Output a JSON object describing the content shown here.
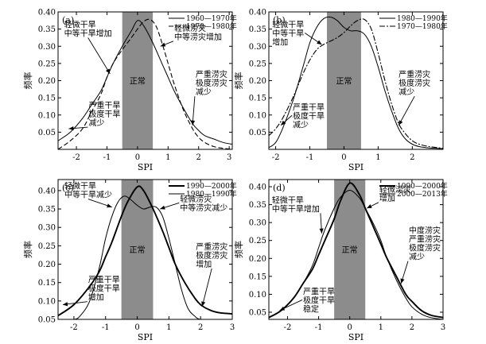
{
  "chart_data": [
    {
      "panel_label": "(a)",
      "type": "line",
      "xlabel": "SPI",
      "ylabel": "频率",
      "xlim": [
        -2.6,
        3.1
      ],
      "ylim": [
        0.0,
        0.4
      ],
      "xticks": [
        -2,
        -1,
        0,
        1,
        2,
        3
      ],
      "yticks": [
        0.05,
        0.1,
        0.15,
        0.2,
        0.25,
        0.3,
        0.35,
        0.4
      ],
      "shaded_region": {
        "x": [
          -0.5,
          0.5
        ],
        "label": "正常"
      },
      "legend": {
        "position": "top-right"
      },
      "series": [
        {
          "name": "1960—1970年",
          "style": "solid",
          "x": [
            -2.6,
            -2.2,
            -1.8,
            -1.5,
            -1.2,
            -1.0,
            -0.8,
            -0.5,
            -0.2,
            0.0,
            0.2,
            0.5,
            0.8,
            1.0,
            1.2,
            1.5,
            1.8,
            2.0,
            2.2,
            2.5,
            2.8,
            3.1
          ],
          "y": [
            0.025,
            0.05,
            0.09,
            0.13,
            0.17,
            0.21,
            0.25,
            0.3,
            0.345,
            0.375,
            0.36,
            0.31,
            0.25,
            0.21,
            0.17,
            0.12,
            0.075,
            0.055,
            0.04,
            0.03,
            0.02,
            0.015
          ]
        },
        {
          "name": "1970—1980年",
          "style": "dashed",
          "x": [
            -2.6,
            -2.2,
            -1.8,
            -1.5,
            -1.2,
            -1.0,
            -0.8,
            -0.5,
            -0.2,
            0.0,
            0.2,
            0.4,
            0.6,
            0.8,
            1.0,
            1.2,
            1.5,
            1.8,
            2.0,
            2.2,
            2.5,
            2.8,
            3.1
          ],
          "y": [
            0.0,
            0.025,
            0.06,
            0.11,
            0.16,
            0.21,
            0.25,
            0.29,
            0.325,
            0.35,
            0.372,
            0.378,
            0.36,
            0.31,
            0.25,
            0.19,
            0.115,
            0.06,
            0.035,
            0.02,
            0.008,
            0.003,
            0.0
          ]
        }
      ],
      "annotations": [
        {
          "lines": [
            "轻微干旱",
            "中等干旱增加"
          ],
          "at": [
            -2.4,
            0.355
          ],
          "target": [
            -0.9,
            0.22
          ]
        },
        {
          "lines": [
            "轻微涝灾",
            "中等涝灾增加"
          ],
          "at": [
            1.2,
            0.345
          ],
          "target": [
            0.75,
            0.3
          ]
        },
        {
          "lines": [
            "严重干旱",
            "极度干旱",
            "减少"
          ],
          "at": [
            -1.6,
            0.12
          ],
          "target": [
            -2.25,
            0.06
          ]
        },
        {
          "lines": [
            "严重涝灾",
            "极度涝灾",
            "减少"
          ],
          "at": [
            1.9,
            0.21
          ],
          "target": [
            1.8,
            0.07
          ]
        }
      ]
    },
    {
      "panel_label": "(b)",
      "type": "line",
      "xlabel": "SPI",
      "ylabel": "频率",
      "xlim": [
        -2.2,
        2.9
      ],
      "ylim": [
        0.0,
        0.4
      ],
      "xticks": [
        -2,
        -1,
        0,
        1,
        2
      ],
      "yticks": [
        0.05,
        0.1,
        0.15,
        0.2,
        0.25,
        0.3,
        0.35,
        0.4
      ],
      "shaded_region": {
        "x": [
          -0.5,
          0.5
        ],
        "label": "正常"
      },
      "legend": {
        "position": "top-right"
      },
      "series": [
        {
          "name": "1980—1990年",
          "style": "solid",
          "x": [
            -2.2,
            -2.0,
            -1.8,
            -1.5,
            -1.2,
            -1.0,
            -0.8,
            -0.6,
            -0.4,
            -0.2,
            0.0,
            0.2,
            0.4,
            0.6,
            0.8,
            1.0,
            1.2,
            1.4,
            1.6,
            1.8,
            2.0,
            2.2,
            2.5,
            2.9
          ],
          "y": [
            0.005,
            0.02,
            0.06,
            0.14,
            0.24,
            0.31,
            0.355,
            0.38,
            0.385,
            0.375,
            0.355,
            0.345,
            0.345,
            0.335,
            0.3,
            0.24,
            0.17,
            0.11,
            0.06,
            0.03,
            0.015,
            0.008,
            0.004,
            0.002
          ]
        },
        {
          "name": "1970—1980年",
          "style": "dashdot",
          "x": [
            -2.2,
            -2.0,
            -1.8,
            -1.5,
            -1.2,
            -1.0,
            -0.8,
            -0.6,
            -0.4,
            -0.2,
            0.0,
            0.2,
            0.4,
            0.6,
            0.8,
            1.0,
            1.2,
            1.4,
            1.6,
            1.8,
            2.0,
            2.2,
            2.5,
            2.9
          ],
          "y": [
            0.04,
            0.06,
            0.09,
            0.15,
            0.22,
            0.26,
            0.29,
            0.305,
            0.315,
            0.325,
            0.34,
            0.36,
            0.375,
            0.378,
            0.35,
            0.28,
            0.2,
            0.13,
            0.075,
            0.045,
            0.025,
            0.015,
            0.008,
            0.003
          ]
        }
      ],
      "annotations": [
        {
          "lines": [
            "轻微干旱",
            "中等干旱",
            "增加"
          ],
          "at": [
            -2.1,
            0.355
          ],
          "target": [
            -0.65,
            0.305
          ]
        },
        {
          "lines": [
            "严重干旱",
            "极度干旱",
            "减少"
          ],
          "at": [
            -1.5,
            0.115
          ],
          "target": [
            -1.85,
            0.07
          ]
        },
        {
          "lines": [
            "严重涝灾",
            "极度涝灾",
            "减少"
          ],
          "at": [
            1.6,
            0.21
          ],
          "target": [
            1.6,
            0.07
          ]
        }
      ]
    },
    {
      "panel_label": "(c)",
      "type": "line",
      "xlabel": "SPI",
      "ylabel": "频率",
      "xlim": [
        -2.5,
        3.0
      ],
      "ylim": [
        0.05,
        0.43
      ],
      "xticks": [
        -2,
        -1,
        0,
        1,
        2,
        3
      ],
      "yticks": [
        0.05,
        0.1,
        0.15,
        0.2,
        0.25,
        0.3,
        0.35,
        0.4
      ],
      "shaded_region": {
        "x": [
          -0.5,
          0.5
        ],
        "label": "正常"
      },
      "legend": {
        "position": "top-right"
      },
      "series": [
        {
          "name": "1990—2000年",
          "style": "solid-bold",
          "x": [
            -2.5,
            -2.0,
            -1.5,
            -1.2,
            -1.0,
            -0.8,
            -0.5,
            -0.3,
            0.0,
            0.2,
            0.5,
            0.8,
            1.0,
            1.2,
            1.5,
            1.8,
            2.0,
            2.3,
            2.6,
            3.0
          ],
          "y": [
            0.06,
            0.09,
            0.14,
            0.18,
            0.22,
            0.26,
            0.33,
            0.37,
            0.41,
            0.4,
            0.35,
            0.29,
            0.245,
            0.2,
            0.15,
            0.11,
            0.09,
            0.075,
            0.068,
            0.065
          ]
        },
        {
          "name": "1980—1990年",
          "style": "solid",
          "x": [
            -2.5,
            -2.0,
            -1.8,
            -1.5,
            -1.2,
            -1.0,
            -0.8,
            -0.6,
            -0.4,
            -0.2,
            0.0,
            0.2,
            0.4,
            0.6,
            0.8,
            1.0,
            1.2,
            1.4,
            1.6,
            1.8,
            2.0,
            2.5,
            3.0
          ],
          "y": [
            0.05,
            0.05,
            0.06,
            0.1,
            0.19,
            0.27,
            0.33,
            0.37,
            0.385,
            0.375,
            0.36,
            0.35,
            0.355,
            0.355,
            0.33,
            0.27,
            0.2,
            0.13,
            0.08,
            0.06,
            0.05,
            0.05,
            0.05
          ]
        }
      ],
      "annotations": [
        {
          "lines": [
            "轻微干旱",
            "中等干旱减少"
          ],
          "at": [
            -2.3,
            0.405
          ],
          "target": [
            -0.8,
            0.355
          ]
        },
        {
          "lines": [
            "轻微涝灾",
            "中等涝灾减少"
          ],
          "at": [
            1.35,
            0.37
          ],
          "target": [
            0.72,
            0.35
          ]
        },
        {
          "lines": [
            "严重涝灾",
            "极度涝灾",
            "增加"
          ],
          "at": [
            1.85,
            0.24
          ],
          "target": [
            2.05,
            0.085
          ]
        },
        {
          "lines": [
            "严重干旱",
            "极度干旱",
            "增加"
          ],
          "at": [
            -1.55,
            0.15
          ],
          "target": [
            -2.35,
            0.09
          ]
        }
      ]
    },
    {
      "panel_label": "(d)",
      "type": "line",
      "xlabel": "SPI",
      "ylabel": "频率",
      "xlim": [
        -2.6,
        3.0
      ],
      "ylim": [
        0.03,
        0.42
      ],
      "xticks": [
        -2,
        -1,
        0,
        1,
        2,
        3
      ],
      "yticks": [
        0.05,
        0.1,
        0.15,
        0.2,
        0.25,
        0.3,
        0.35,
        0.4
      ],
      "shaded_region": {
        "x": [
          -0.5,
          0.5
        ],
        "label": "正常"
      },
      "legend": {
        "position": "top-right"
      },
      "series": [
        {
          "name": "1990—2000年",
          "style": "solid-bold",
          "x": [
            -2.6,
            -2.2,
            -1.8,
            -1.5,
            -1.2,
            -1.0,
            -0.8,
            -0.5,
            -0.3,
            0.0,
            0.3,
            0.5,
            0.8,
            1.0,
            1.2,
            1.5,
            1.8,
            2.0,
            2.3,
            2.6,
            3.0
          ],
          "y": [
            0.035,
            0.055,
            0.09,
            0.13,
            0.17,
            0.21,
            0.25,
            0.31,
            0.36,
            0.41,
            0.38,
            0.34,
            0.28,
            0.24,
            0.2,
            0.15,
            0.1,
            0.08,
            0.055,
            0.042,
            0.035
          ]
        },
        {
          "name": "2000—2013年",
          "style": "solid",
          "x": [
            -2.6,
            -2.2,
            -1.8,
            -1.5,
            -1.2,
            -1.0,
            -0.8,
            -0.5,
            -0.3,
            0.0,
            0.3,
            0.5,
            0.8,
            1.0,
            1.2,
            1.5,
            1.8,
            2.0,
            2.3,
            2.6,
            3.0
          ],
          "y": [
            0.035,
            0.055,
            0.09,
            0.13,
            0.18,
            0.23,
            0.28,
            0.34,
            0.37,
            0.39,
            0.37,
            0.34,
            0.29,
            0.25,
            0.2,
            0.14,
            0.09,
            0.065,
            0.045,
            0.035,
            0.03
          ]
        }
      ],
      "annotations": [
        {
          "lines": [
            "轻微干旱",
            "中等干旱增加"
          ],
          "at": [
            -2.5,
            0.355
          ],
          "target": [
            -0.9,
            0.27
          ]
        },
        {
          "lines": [
            "轻微涝灾",
            "增加"
          ],
          "at": [
            0.95,
            0.385
          ],
          "target": [
            0.55,
            0.34
          ]
        },
        {
          "lines": [
            "中度涝灾",
            "严重涝灾",
            "极度涝灾",
            "减少"
          ],
          "at": [
            1.9,
            0.27
          ],
          "target": [
            1.65,
            0.13
          ]
        },
        {
          "lines": [
            "严重干旱",
            "极度干旱",
            "稳定"
          ],
          "at": [
            -1.5,
            0.1
          ],
          "target": [
            -2.25,
            0.055
          ]
        }
      ]
    }
  ]
}
